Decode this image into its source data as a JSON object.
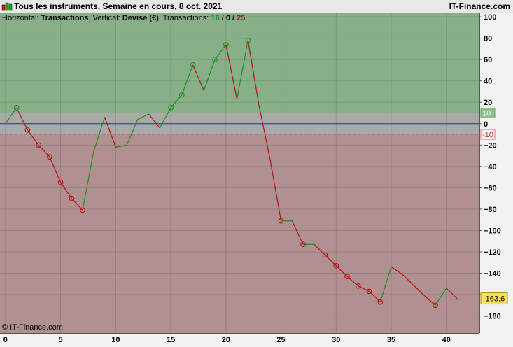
{
  "titlebar": {
    "title": "Tous les instruments, Semaine en cours, 8 oct. 2021",
    "brand": "IT-Finance.com"
  },
  "infoline": {
    "prefix_horizontal": "Horizontal:",
    "horizontal_value": "Transactions",
    "prefix_vertical": ", Vertical:",
    "vertical_value": "Devise (€)",
    "prefix_transactions": ", Transactions:",
    "wins": "16",
    "sep1": " / ",
    "neutral": "0",
    "sep2": " / ",
    "losses": "25"
  },
  "copyright": "© IT-Finance.com",
  "colors": {
    "win": "#1e8c1e",
    "loss": "#b01010",
    "zone_positive": "#88b088",
    "zone_neutral": "#a9a9a9",
    "zone_negative": "#b09090",
    "zero_line": "#2030c0",
    "badge_current": "#f7e15a"
  },
  "chart_data": {
    "type": "line",
    "xlabel": "",
    "ylabel": "",
    "xlim": [
      -0.5,
      43
    ],
    "ylim": [
      -196,
      104
    ],
    "x_ticks": [
      0,
      5,
      10,
      15,
      20,
      25,
      30,
      35,
      40
    ],
    "x_tick_labels": [
      "0",
      "5",
      "10",
      "15",
      "20",
      "25",
      "30",
      "35",
      "40"
    ],
    "y_ticks": [
      100,
      80,
      60,
      40,
      20,
      0,
      -20,
      -40,
      -60,
      -80,
      -100,
      -120,
      -140,
      -160,
      -180
    ],
    "y_tick_labels": [
      "100",
      "80",
      "60",
      "40",
      "20",
      "0",
      "−20",
      "−40",
      "−60",
      "−80",
      "−100",
      "−120",
      "−140",
      "−160",
      "−180"
    ],
    "neutral_band": {
      "upper": 10,
      "lower": -10,
      "upper_label": "10",
      "lower_label": "-10"
    },
    "current_value": {
      "value": -163.6,
      "label": "-163,6"
    },
    "series": [
      {
        "x": [
          0,
          1,
          2,
          3,
          4,
          5,
          6,
          7,
          8,
          9,
          10,
          11,
          12,
          13,
          14,
          15,
          16,
          17,
          18,
          19,
          20,
          21,
          22,
          23,
          24,
          25,
          26,
          27,
          28,
          29,
          30,
          31,
          32,
          33,
          34,
          35,
          36,
          37,
          38,
          39,
          40,
          41
        ],
        "y": [
          0,
          15,
          -6,
          -20,
          -31,
          -55,
          -70,
          -81,
          -26,
          6,
          -22,
          -20,
          4,
          9,
          -4,
          15,
          27,
          55,
          31,
          60,
          74,
          23,
          78,
          17,
          -33,
          -91,
          -91,
          -113,
          -113,
          -123,
          -133,
          -143,
          -152,
          -157,
          -167,
          -134,
          -141,
          -151,
          -161,
          -170,
          -154,
          -164
        ],
        "markers": [
          1,
          2,
          3,
          4,
          5,
          6,
          7,
          15,
          16,
          17,
          19,
          20,
          22,
          25,
          27,
          29,
          30,
          31,
          32,
          33,
          34,
          39
        ]
      }
    ]
  }
}
